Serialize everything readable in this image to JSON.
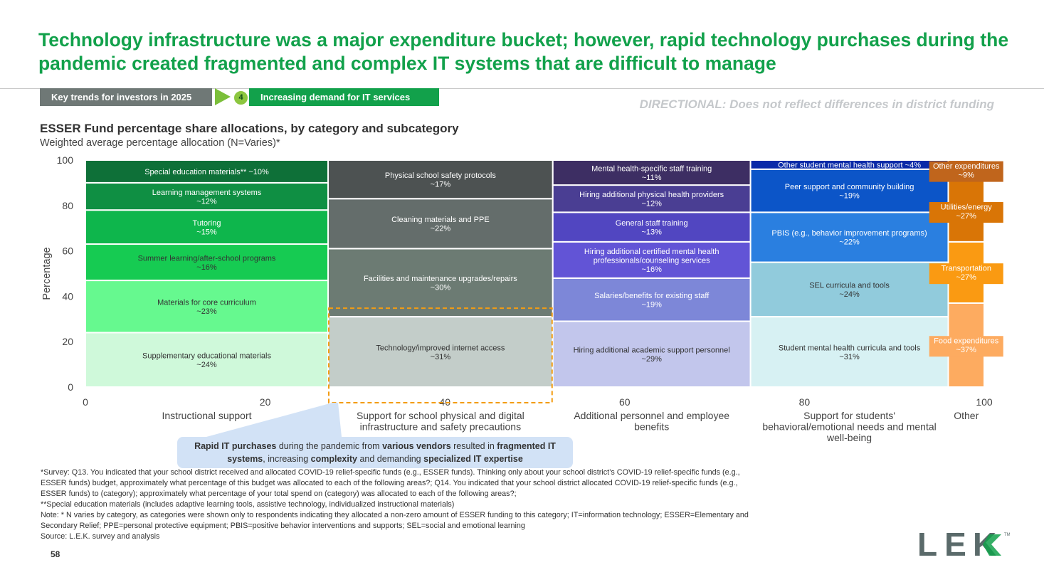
{
  "title": "Technology infrastructure was a major expenditure bucket; however, rapid technology purchases during the pandemic created fragmented and complex IT systems that are difficult to manage",
  "breadcrumb": {
    "section": "Key trends for investors in 2025",
    "step_number": "4",
    "step_label": "Increasing demand for IT services"
  },
  "directional_note": "DIRECTIONAL: Does not reflect differences in district funding",
  "colors": {
    "brand_green": "#12a14b",
    "callout_bg": "#d2e2f6",
    "highlight_border": "#f39c12"
  },
  "chart_data": {
    "type": "marimekko",
    "title": "ESSER Fund percentage share allocations, by category and subcategory",
    "subtitle": "Weighted average percentage allocation (N=Varies)*",
    "ylabel": "Percentage",
    "xlim": [
      0,
      100
    ],
    "ylim": [
      0,
      100
    ],
    "x_ticks": [
      "0",
      "20",
      "40",
      "60",
      "80",
      "100"
    ],
    "y_ticks": [
      "0",
      "20",
      "40",
      "60",
      "80",
      "100"
    ],
    "categories": [
      {
        "name": "Instructional support",
        "x_start": 0,
        "x_end": 27,
        "segments": [
          {
            "label": "Supplementary educational materials ~24%",
            "value": 24,
            "color": "#cff9da",
            "text_color": "#333333"
          },
          {
            "label": "Materials for core curriculum ~23%",
            "value": 23,
            "color": "#66f98f",
            "text_color": "#333333"
          },
          {
            "label": "Summer learning/after-school programs ~16%",
            "value": 16,
            "color": "#16cb52",
            "text_color": "#333333"
          },
          {
            "label": "Tutoring ~15%",
            "value": 15,
            "color": "#0eb64c",
            "text_color": "#ffffff"
          },
          {
            "label": "Learning management systems ~12%",
            "value": 12,
            "color": "#0f8f43",
            "text_color": "#ffffff"
          },
          {
            "label": "Special education materials** ~10%",
            "value": 10,
            "color": "#0e7038",
            "text_color": "#ffffff"
          }
        ]
      },
      {
        "name": "Support for school physical and digital infrastructure and safety precautions",
        "x_start": 27,
        "x_end": 52,
        "segments": [
          {
            "label": "Technology/improved internet access ~31%",
            "value": 31,
            "color": "#c3cdc9",
            "text_color": "#333333"
          },
          {
            "label": "Facilities and maintenance upgrades/repairs ~30%",
            "value": 30,
            "color": "#6c7b73",
            "text_color": "#ffffff"
          },
          {
            "label": "Cleaning materials and PPE ~22%",
            "value": 22,
            "color": "#646d6b",
            "text_color": "#ffffff"
          },
          {
            "label": "Physical school safety protocols ~17%",
            "value": 17,
            "color": "#4d5252",
            "text_color": "#ffffff"
          }
        ]
      },
      {
        "name": "Additional personnel and employee benefits",
        "x_start": 52,
        "x_end": 74,
        "segments": [
          {
            "label": "Hiring additional academic support personnel ~29%",
            "value": 29,
            "color": "#c2c6ec",
            "text_color": "#333333"
          },
          {
            "label": "Salaries/benefits for existing staff ~19%",
            "value": 19,
            "color": "#7d87d8",
            "text_color": "#ffffff"
          },
          {
            "label": "Hiring additional certified mental health professionals/counseling services ~16%",
            "value": 16,
            "color": "#6254d6",
            "text_color": "#ffffff"
          },
          {
            "label": "General staff training ~13%",
            "value": 13,
            "color": "#5146c1",
            "text_color": "#ffffff"
          },
          {
            "label": "Hiring additional physical health providers ~12%",
            "value": 12,
            "color": "#4a3e93",
            "text_color": "#ffffff"
          },
          {
            "label": "Mental health-specific staff training ~11%",
            "value": 11,
            "color": "#3d2e63",
            "text_color": "#ffffff"
          }
        ]
      },
      {
        "name": "Support for students' behavioral/emotional needs and mental well-being",
        "x_start": 74,
        "x_end": 96,
        "segments": [
          {
            "label": "Student mental health curricula and tools ~31%",
            "value": 31,
            "color": "#d7f1f3",
            "text_color": "#333333"
          },
          {
            "label": "SEL curricula and tools ~24%",
            "value": 24,
            "color": "#91cbdc",
            "text_color": "#333333"
          },
          {
            "label": "PBIS (e.g., behavior improvement programs) ~22%",
            "value": 22,
            "color": "#2a7fe0",
            "text_color": "#ffffff"
          },
          {
            "label": "Peer support and community building ~19%",
            "value": 19,
            "color": "#0c55c8",
            "text_color": "#ffffff"
          },
          {
            "label": "Other student mental health support ~4%",
            "value": 4,
            "color": "#0a2aa8",
            "text_color": "#ffffff"
          }
        ]
      },
      {
        "name": "Other",
        "x_start": 96,
        "x_end": 100,
        "segments": [
          {
            "label": "Food expenditures ~37%",
            "value": 37,
            "color": "#fdab60",
            "text_color": "#333333"
          },
          {
            "label": "Transportation ~27%",
            "value": 27,
            "color": "#fa9a12",
            "text_color": "#ffffff"
          },
          {
            "label": "Utilities/energy ~27%",
            "value": 27,
            "color": "#d97506",
            "text_color": "#ffffff"
          },
          {
            "label": "Other expenditures ~9%",
            "value": 9,
            "color": "#c0651c",
            "text_color": "#ffffff"
          }
        ]
      }
    ],
    "highlight": {
      "category": "Support for school physical and digital infrastructure and safety precautions",
      "segment": "Technology/improved internet access ~31%"
    }
  },
  "callout": {
    "parts": [
      {
        "text": "Rapid IT purchases",
        "bold": true
      },
      {
        "text": " during the pandemic from ",
        "bold": false
      },
      {
        "text": "various vendors",
        "bold": true
      },
      {
        "text": " resulted in ",
        "bold": false
      },
      {
        "text": "fragmented IT systems",
        "bold": true
      },
      {
        "text": ", increasing ",
        "bold": false
      },
      {
        "text": "complexity",
        "bold": true
      },
      {
        "text": " and demanding ",
        "bold": false
      },
      {
        "text": "specialized IT expertise",
        "bold": true
      }
    ]
  },
  "footnotes": [
    "*Survey: Q13. You indicated that your school district received and allocated COVID-19 relief-specific funds (e.g., ESSER funds). Thinking only about your school district’s COVID-19 relief-specific funds (e.g., ESSER funds) budget, approximately what percentage of this budget was allocated to each of the following areas?; Q14. You indicated that your school district allocated COVID-19 relief-specific funds (e.g., ESSER funds) to (category); approximately what percentage of your total spend on (category) was allocated to each of the following areas?;",
    "**Special education materials (includes adaptive learning tools, assistive technology, individualized instructional materials)",
    "Note: * N varies by category, as categories were shown only to respondents indicating they allocated a non-zero amount of ESSER funding to this category; IT=information technology; ESSER=Elementary and Secondary Relief; PPE=personal protective equipment; PBIS=positive behavior interventions and supports; SEL=social and emotional learning",
    "Source: L.E.K. survey and analysis"
  ],
  "page_number": "58",
  "logo": {
    "text_left": "LE",
    "text_right": "K",
    "trademark": "TM",
    "primary_color": "#5a6a6a",
    "accent_color": "#12a14b"
  }
}
